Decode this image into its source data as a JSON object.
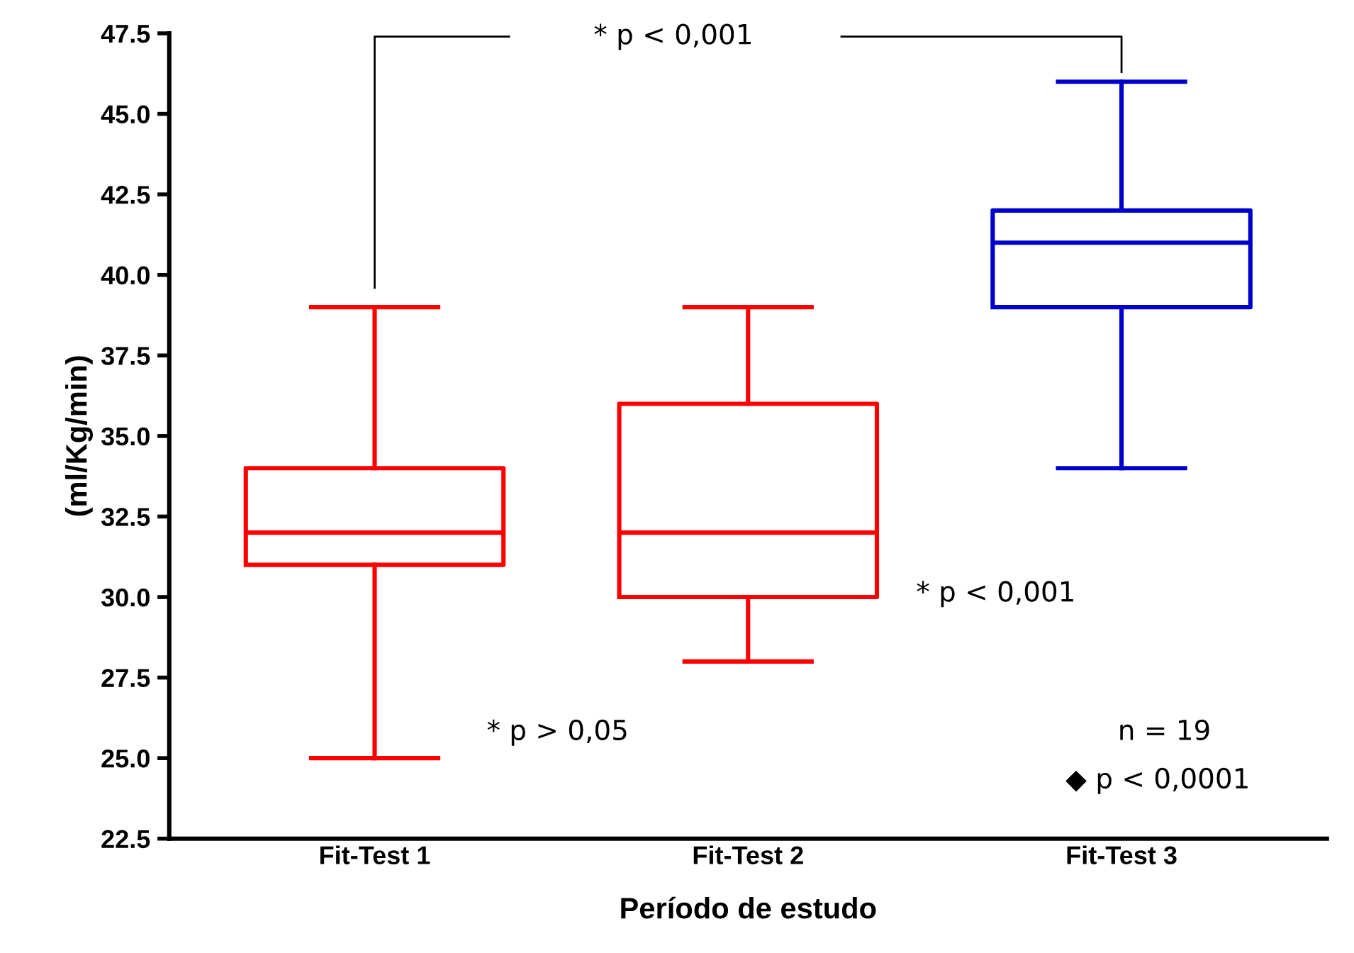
{
  "chart_data": {
    "type": "box",
    "xlabel": "Período de estudo",
    "ylabel": "(ml/Kg/min)",
    "categories": [
      "Fit-Test 1",
      "Fit-Test 2",
      "Fit-Test 3"
    ],
    "colors": [
      "#ff0000",
      "#ff0000",
      "#0000cc"
    ],
    "boxes": [
      {
        "low": 25,
        "q1": 31,
        "median": 32,
        "q3": 34,
        "high": 39
      },
      {
        "low": 28,
        "q1": 30,
        "median": 32,
        "q3": 36,
        "high": 39
      },
      {
        "low": 34,
        "q1": 39,
        "median": 41,
        "q3": 42,
        "high": 46
      }
    ],
    "ylim": [
      22.5,
      47.5
    ],
    "yticks": [
      {
        "value": 22.5,
        "label": "22.5"
      },
      {
        "value": 25,
        "label": "25.0"
      },
      {
        "value": 27.5,
        "label": "27.5"
      },
      {
        "value": 30,
        "label": "30.0"
      },
      {
        "value": 32.5,
        "label": "32.5"
      },
      {
        "value": 35,
        "label": "35.0"
      },
      {
        "value": 37.5,
        "label": "37.5"
      },
      {
        "value": 40,
        "label": "40.0"
      },
      {
        "value": 42.5,
        "label": "42.5"
      },
      {
        "value": 45,
        "label": "45.0"
      },
      {
        "value": 47.5,
        "label": "47.5"
      }
    ],
    "annotations": [
      "* p < 0,001",
      "* p > 0,05",
      "* p < 0,001",
      "n = 19",
      "◆ p < 0,0001"
    ],
    "grid": false,
    "legend": false
  }
}
